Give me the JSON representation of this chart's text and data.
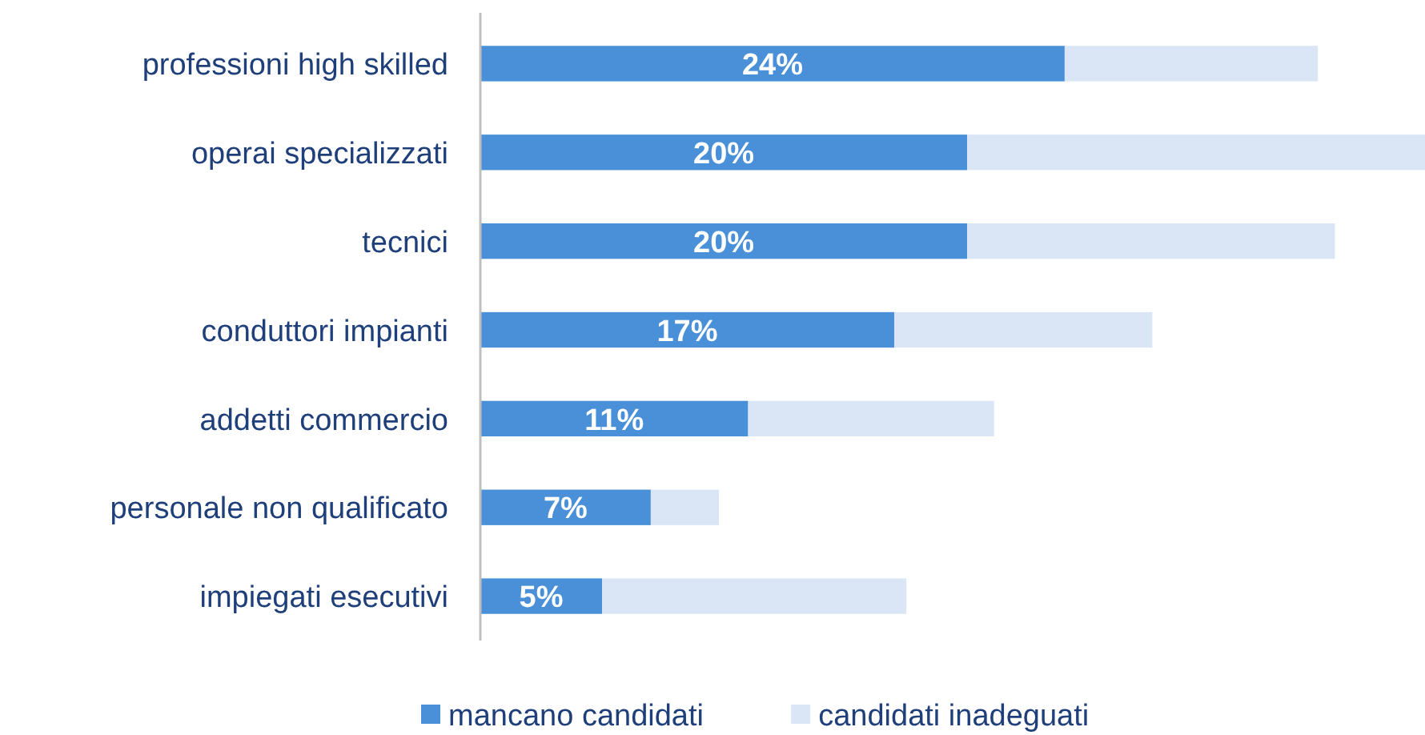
{
  "chart_data": {
    "type": "bar",
    "orientation": "horizontal",
    "stacked": true,
    "legend": "bottom",
    "categories": [
      "professioni high skilled",
      "operai specializzati",
      "tecnici",
      "conduttori impianti",
      "addetti commercio",
      "personale non qualificato",
      "impiegati esecutivi"
    ],
    "series": [
      {
        "name": "mancano candidati",
        "color": "#4a90d9",
        "values": [
          24,
          20,
          20,
          17,
          11,
          7,
          5
        ],
        "value_labels": [
          "24%",
          "20%",
          "20%",
          "17%",
          "11%",
          "7%",
          "5%"
        ]
      },
      {
        "name": "candidati inadeguati",
        "color": "#dae6f6",
        "values": [
          10.4,
          18.8,
          15.1,
          10.6,
          10.1,
          2.8,
          12.5
        ]
      }
    ]
  }
}
